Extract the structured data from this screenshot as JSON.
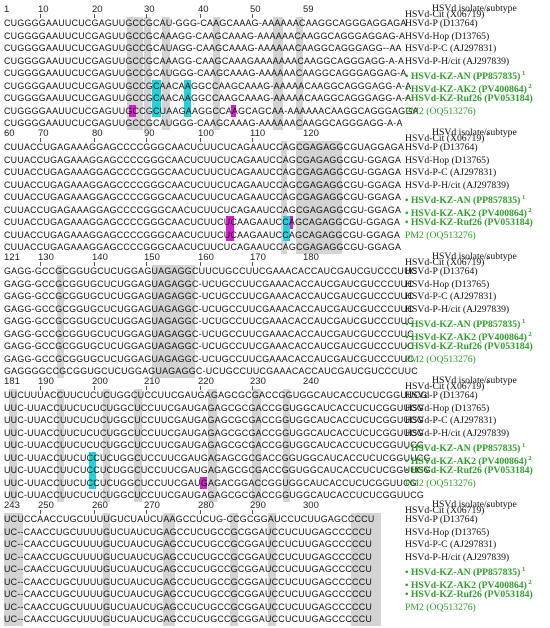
{
  "header_label": "HSVd isolate/subtype",
  "isolates": [
    {
      "name": "HSVd-Cit (X06719)",
      "note": " *",
      "style": "ref"
    },
    {
      "name": "HSVd-P (D13764)",
      "note": "",
      "style": "ref"
    },
    {
      "name": "HSVd-Hop (D13765)",
      "note": "",
      "style": "ref"
    },
    {
      "name": "HSVd-P-C (AJ297831)",
      "note": "",
      "style": "ref"
    },
    {
      "name": "HSVd-P-H/cit (AJ297839)",
      "note": "",
      "style": "ref"
    },
    {
      "name": "• HSVd-KZ-AN (PP857835)",
      "note": " 1",
      "style": "gb"
    },
    {
      "name": "• HSVd-KZ-AK2 (PV400864)",
      "note": " 2",
      "style": "gb"
    },
    {
      "name": "• HSVd-KZ-Ruf26 (PV053184)",
      "note": "",
      "style": "gb"
    },
    {
      "name": "PM2 (OQ513276)",
      "note": "",
      "style": "g"
    }
  ],
  "blocks": [
    {
      "numbers": [
        "1",
        "10",
        "20",
        "30",
        "40",
        "50",
        "59"
      ],
      "rows": [
        "CUGGGGAAUUCUCGAGUUGCCGCAU-GGG-CAAGCAAAG-AAAAAACAAGGCAGGGAGGAGA",
        "CUGGGGAAUUCUCGAGUUGCCGCAAAGG-CAAGCAAAG-AAAAAACAAGGCAGGGAGGAG-A",
        "CUGGGGAAUUCUCGAGUUGCCGCAUAGG-CAAGCAAAG-AAAAAACAAGGCAGGGAGG--AA",
        "CUGGGGAAUUCUCGAGUUGCCGCAAAGG-CAAGCAAAGAAAAAAACAAGGCAGGGAGG-A-A",
        "CUGGGGAAUUCUCGAGUUGCCGCAUGGG-CAAGCAAAG-AAAAAACAAGGCAGGGAGGAG-A",
        "CUGGGGAAUUCUCGAGUUGCCGCAACAAGGCCAAGCAAAG-AAAAACAAGGCAGGGAGG-A-A",
        "CUGGGGAAUUCUCGAGUUGCCGCAACAAGGCCAAGCAAAG-AAAAACAAGGCAGGGAGG-A-A",
        "CUGGGGAAUUCUCGAGUUGCCGCUAAGAAGGCCAAGCAGCAA-AAAAAACAAGGCAGGGAGGA",
        "CUGGGGAAUUCUCGAGUUGCCGCAUGGG-CAAGCAAAG-AAAAAACAAGGCAGGGAGG-A-A"
      ]
    },
    {
      "numbers": [
        "60",
        "70",
        "80",
        "90",
        "100",
        "110",
        "120"
      ],
      "rows": [
        "CUUACCUGAGAAAGGAGCCCCGGGCAACUCUUCUCAGAAUCCAGCGAGAGGCGUAGGAGA",
        "CUUACCUGAGAAAGGAGCCCCGGGCAACUCUUCUCAGAAUCCAGCGAGAGGCGU-GGAGA",
        "CUUACCUGAGAAAGGAGCCCCGGGCAACUCUUCUCAGAAUCCAGCGAGAGGCGU-GGAGA",
        "CUUACCUGAGAAAGGAGCCCCGGGCAACUCUUCUCAGAAUCCAGCGAGAGGCGU-GGAGA",
        "CUUACCUGAGAAAGGAGCCCCGGGCAACUCUUCUCAGAAUCCAGCGAGAGGCGU-GGAGA",
        "CUUACCUGAGAAAGGAGCCCCGGGCAACUCUUCUCAGAAUCCAGCGAGAGGCGU-GGAGA",
        "CUUACCUGAGAAAGGAGCCCCGGGCAACUCUUCUCAAGAAUCCAGCAGAGGCGU-GGAGA",
        "CUUACCUGAGAAAGGAGCCCCGGGCAACUCUUCUCAAGAAUCCAGCAGAGGCGU-GGAGA",
        "CUUACCUGAGAAAGGAGCCCCGGGCAACUCUUCUCAGAAUCCAGCGAGAGGCGU-GGAGA"
      ]
    },
    {
      "numbers": [
        "121",
        "130",
        "140",
        "150",
        "160",
        "170",
        "180"
      ],
      "rows": [
        "GAGG-GCCGCGGUGCUCUGGAGUAGAGGCUUCUGCCUUCGAAACACCAUCGAUCGUCCCUUC",
        "GAGG-GCCGCGGUGCUCUGGAGUAGAGGC-UCUGCCUUCGAAACACCAUCGAUCGUCCCUUC",
        "GAGG-GCCGCGGUGCUCUGGAGUAGAGGC-UCUGCCUUCGAAACACCAUCGAUCGUCCCUUC",
        "GAGG-GCCGCGGUGCUCUGGAGUAGAGGC-UCUGCCUUCGAAACACCAUCGAUCGUCCCUUC",
        "GAGG-GCCGCGGUGCUCUGGAGUAGAGGC-UCUGCCUUCGAAACACCAUCGAUCGUCCCUUC",
        "GAGG-GCCGCGGUGCUCUGGAGUAGAGGC-UCUGCCUUCGAAACACCAUCGAUCGUCCCUUC",
        "GAGG-GCCGCGGUGCUCUGGAGUAGAGGC-UCUGCCUUCGAAACACCAUCGAUCGUCCCUUC",
        "GAGG-GCCGCGGUGCUCUGGAGUAGAGGC-UCUGCCUUCGAAACACCAUCGAUCGUCCCUUC",
        "GAGGGGCCGCGGUGCUCUGGAGUAGAGGC-UCUGCCUUCGAAACACCAUCGAUCGUCCCUUC"
      ]
    },
    {
      "numbers": [
        "181",
        "190",
        "200",
        "210",
        "220",
        "230",
        "240"
      ],
      "rows": [
        "UUCUUUACCUUCUCUCUGGCUCCUUCGAUGAGAGCGCGACCGGUGGCAUCACCUCUCGGUUCG",
        "UUC-UUACCUUCUCUCUGGCUCCUUCGAUGAGAGCGCGACCGGUGGCAUCACCUCUCGGUUCG",
        "UUC-UUACCUUCUCUCUGGCUCCUUCGAUGAGAGCGCGACCGGUGGCAUCACCUCUCGGUUCG",
        "UUC-UUACCUUCUCUCUGGCUCCUUCGAUGAGAGCGCGACCGGUGGCAUCACCUCUCGGUUCG",
        "UUC-UUACCUUCUCUCUGGCUCCUUCGAUGAGAGCGCGACCGGUGGCAUCACCUCUCGGUUCG",
        "UUC-UUACCUUCUCCUCUGGCUCCUUCGAUGAGAGCGCGACCGGUGGCAUCACCUCUCGGUUCG",
        "UUC-UUACCUUCUCCUCUGGCUCCUUCGAUGAGAGCGCGACCGGUGGCAUCACCUCUCGGUUCG",
        "UUC-UUACCUUCUCCUCUGGCUCCUUCGAUGAGACGGACCGGUGGCAUCACCUCUCGGUUCG",
        "UUC-UUACCUUCUCUCUGGCUCCUUCGAUGAGAGCGCGACCGGUGGCAUCACCUCUCGGUUCG"
      ]
    },
    {
      "numbers": [
        "243",
        "250",
        "260",
        "270",
        "280",
        "290",
        "300"
      ],
      "rows": [
        "UCUCCAACCUGCUUUUGUCUAUCUAAGCCUCUG-CCGCGGAUCCUCUUGAGCCCCU",
        "UC--CAACCUGCUUUUGUCUAUCUGAGCCUCUGCCGCGGAUCCUCUUGAGCCCCCU",
        "UC--CAACCUGCUUUUGUCUAUCUGAGCCUCUGCCGCGGAUCCUCUUGAGCCCCCU",
        "UC--CAACCUGCUUUUGUCUAUCUGAGCCUCUGCCGCGGAUCCUCUUGAGCCCCCU",
        "UC--CAACCUGCUUUUGUCUAUCUGAGCCUCUGCCGCGGAUCCUCUUGAGCCCCCU",
        "UC--CAACCUGCUUUUGUCUAUCUGAGCCUCUGCCGCGGAUCCUCUUGAGCCCCCU",
        "UC--CAACCUGCUUUUGUCUAUCUGAGCCUCUGCCGCGGAUCCUCUUGAGCCCCCU",
        "UC--CAACCUGCUUUUGUCUAUCUGAGCCUCUGCCGCGGAUCCUCUUGAGCCCCCU",
        "UC--CAACCUGCUUUUGUCUAUCUGAGCCUCUGCCGCGGAUCCUCUUGAGCCCCCU"
      ]
    }
  ],
  "colors": {
    "gray": "#d4d4d4",
    "cyan": "#1ed3dc",
    "magenta": "#d81fcf",
    "green": "#2ea02a"
  }
}
